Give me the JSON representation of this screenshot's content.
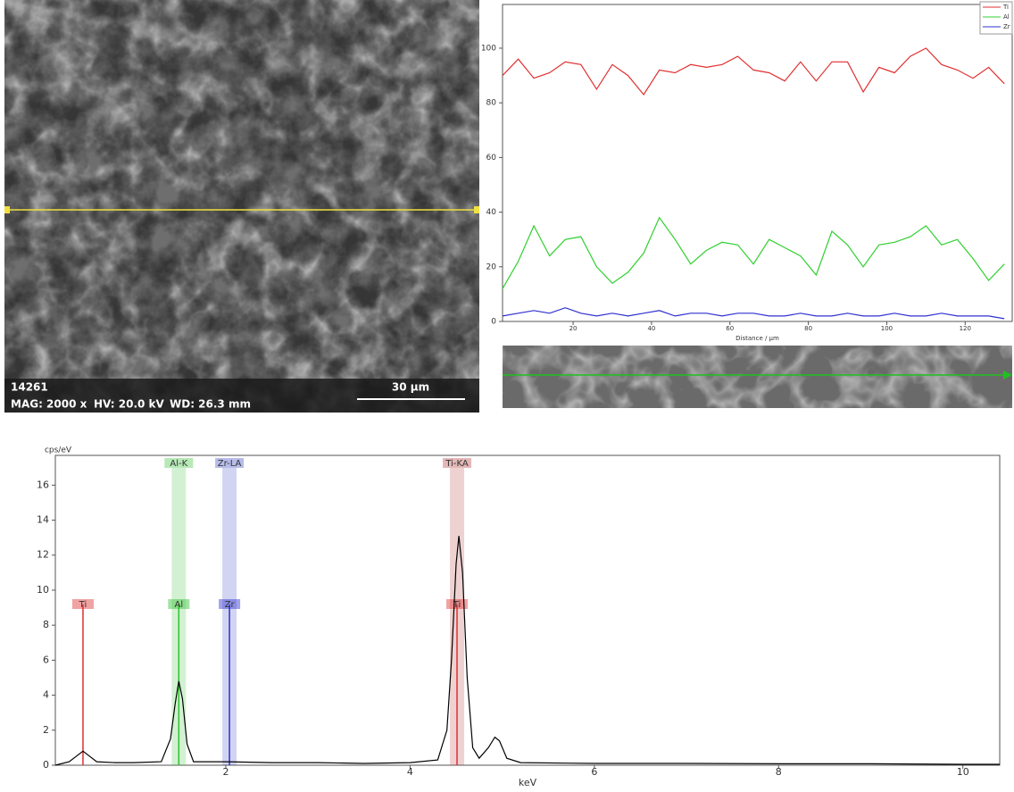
{
  "sem_image": {
    "sample_id": "14261",
    "magnification": "MAG: 2000 x",
    "voltage": "HV: 20.0 kV",
    "working_distance": "WD: 26.3 mm",
    "scale_bar": "30 µm"
  },
  "chart_data": [
    {
      "type": "line",
      "xlabel": "Distance / µm",
      "x": [
        2,
        6,
        10,
        14,
        18,
        22,
        26,
        30,
        34,
        38,
        42,
        46,
        50,
        54,
        58,
        62,
        66,
        70,
        74,
        78,
        82,
        86,
        90,
        94,
        98,
        102,
        106,
        110,
        114,
        118,
        122,
        126,
        130
      ],
      "xlim": [
        2,
        132
      ],
      "xticks": [
        20,
        40,
        60,
        80,
        100,
        120
      ],
      "ylim": [
        0,
        116
      ],
      "yticks": [
        0,
        20,
        40,
        60,
        80,
        100
      ],
      "legend": "upper right",
      "series": [
        {
          "name": "Ti",
          "color": "#e03030",
          "values": [
            90,
            96,
            89,
            91,
            95,
            94,
            85,
            94,
            90,
            83,
            92,
            91,
            94,
            93,
            94,
            97,
            92,
            91,
            88,
            95,
            88,
            95,
            95,
            84,
            93,
            91,
            97,
            100,
            94,
            92,
            89,
            93,
            87
          ]
        },
        {
          "name": "Al",
          "color": "#30d030",
          "values": [
            12,
            22,
            35,
            24,
            30,
            31,
            20,
            14,
            18,
            25,
            38,
            30,
            21,
            26,
            29,
            28,
            21,
            30,
            27,
            24,
            17,
            33,
            28,
            20,
            28,
            29,
            31,
            35,
            28,
            30,
            23,
            15,
            21
          ]
        },
        {
          "name": "Zr",
          "color": "#3030d0",
          "values": [
            2,
            3,
            4,
            3,
            5,
            3,
            2,
            3,
            2,
            3,
            4,
            2,
            3,
            3,
            2,
            3,
            3,
            2,
            2,
            3,
            2,
            2,
            3,
            2,
            2,
            3,
            2,
            2,
            3,
            2,
            2,
            2,
            1
          ]
        }
      ]
    },
    {
      "type": "line",
      "ylabel": "cps/eV",
      "xlabel": "keV",
      "color": "#000000",
      "x": [
        0.15,
        0.3,
        0.4,
        0.45,
        0.5,
        0.6,
        0.8,
        1.0,
        1.3,
        1.4,
        1.45,
        1.49,
        1.53,
        1.58,
        1.65,
        2.0,
        2.5,
        3.0,
        3.5,
        4.0,
        4.3,
        4.4,
        4.45,
        4.5,
        4.53,
        4.57,
        4.62,
        4.68,
        4.75,
        4.85,
        4.92,
        4.97,
        5.05,
        5.2,
        6,
        7,
        8,
        9,
        10,
        10.4
      ],
      "values": [
        0,
        0.2,
        0.6,
        0.8,
        0.6,
        0.2,
        0.15,
        0.15,
        0.2,
        1.5,
        3.5,
        4.8,
        3.8,
        1.2,
        0.2,
        0.2,
        0.15,
        0.15,
        0.1,
        0.15,
        0.3,
        2.0,
        6.0,
        11.5,
        13.1,
        11,
        5,
        1.0,
        0.4,
        1.0,
        1.6,
        1.4,
        0.4,
        0.15,
        0.1,
        0.1,
        0.08,
        0.08,
        0.05,
        0.05
      ],
      "xlim": [
        0.15,
        10.4
      ],
      "xticks": [
        2,
        4,
        6,
        8,
        10
      ],
      "ylim": [
        0,
        17.7
      ],
      "yticks": [
        0,
        2,
        4,
        6,
        8,
        10,
        12,
        14,
        16
      ],
      "markers": [
        {
          "label": "Ti",
          "x": 0.45,
          "color": "#e03030"
        },
        {
          "label": "Al",
          "x": 1.49,
          "color": "#30c030"
        },
        {
          "label": "Zr",
          "x": 2.04,
          "color": "#3030d0"
        },
        {
          "label": "Ti",
          "x": 4.51,
          "color": "#e03030"
        }
      ],
      "bands": [
        {
          "label": "Al-K",
          "x": 1.49,
          "color": "#30c030"
        },
        {
          "label": "Zr-LA",
          "x": 2.04,
          "color": "#3040c0"
        },
        {
          "label": "Ti-KA",
          "x": 4.51,
          "color": "#b03030"
        }
      ]
    }
  ]
}
